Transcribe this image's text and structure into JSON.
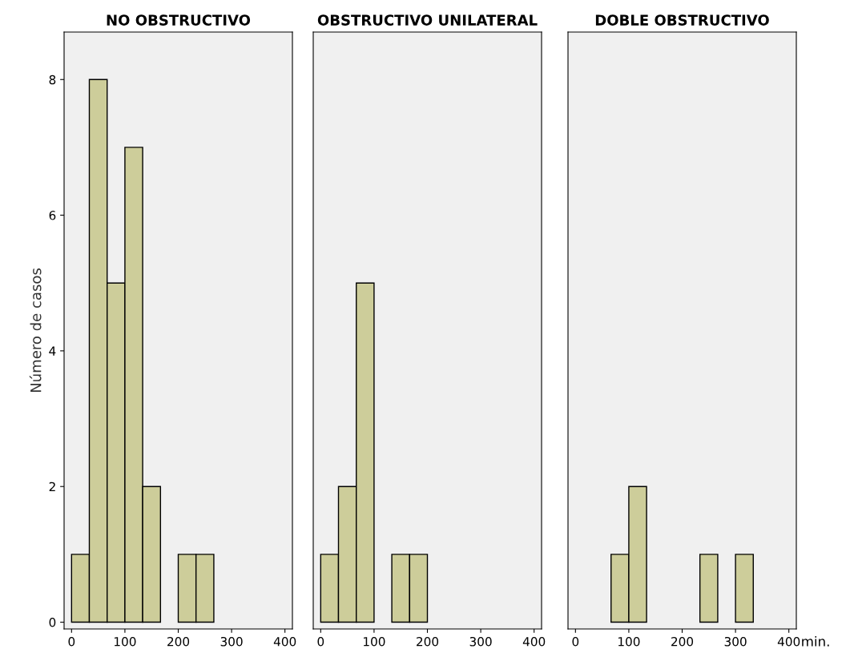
{
  "chart_data": [
    {
      "type": "histogram",
      "title": "NO OBSTRUCTIVO",
      "ylabel": "Número de casos",
      "bins": [
        0,
        33.3,
        66.7,
        100,
        133.3,
        166.7,
        200,
        233.3,
        266.7
      ],
      "values": [
        1,
        8,
        5,
        7,
        2,
        0,
        1,
        1
      ],
      "color": "#cdcd9a",
      "xlim": [
        -14,
        414
      ],
      "xticks": [
        0,
        100,
        200,
        300,
        400
      ],
      "ylim": [
        -0.1,
        8.7
      ],
      "yticks": [
        0,
        2,
        4,
        6,
        8
      ],
      "grid": false
    },
    {
      "type": "histogram",
      "title": "OBSTRUCTIVO UNILATERAL",
      "bins": [
        0,
        33.3,
        66.7,
        100,
        133.3,
        166.7,
        200
      ],
      "values": [
        1,
        2,
        5,
        0,
        1,
        1
      ],
      "color": "#cdcd9a",
      "xlim": [
        -14,
        414
      ],
      "xticks": [
        0,
        100,
        200,
        300,
        400
      ],
      "ylim": [
        -0.1,
        8.7
      ],
      "tick_labels": "x",
      "grid": false
    },
    {
      "type": "histogram",
      "title": "DOBLE OBSTRUCTIVO",
      "xlabel": "min.",
      "bins": [
        66.7,
        100,
        133.3,
        166.7,
        200,
        233.3,
        266.7,
        300,
        333.3
      ],
      "values": [
        1,
        2,
        0,
        0,
        0,
        1,
        0,
        1
      ],
      "color": "#cdcd9a",
      "xlim": [
        -14,
        414
      ],
      "xticks": [
        0,
        100,
        200,
        300,
        400
      ],
      "ylim": [
        -0.1,
        8.7
      ],
      "tick_labels": "x",
      "grid": false
    }
  ]
}
